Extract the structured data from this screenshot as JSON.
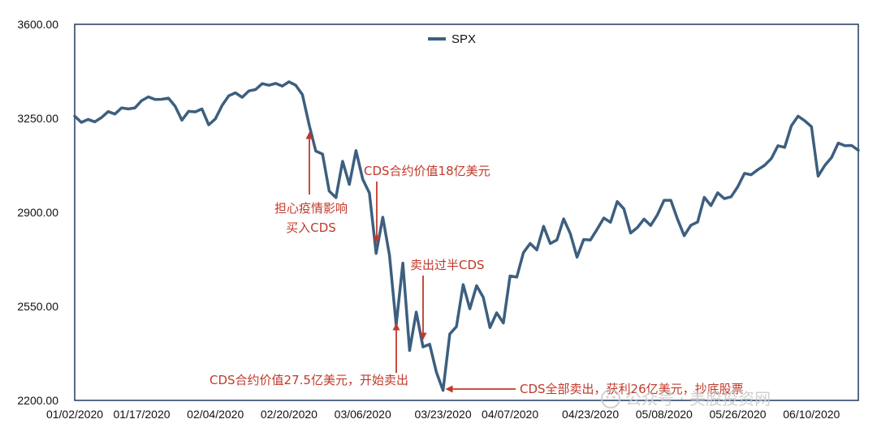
{
  "chart_data": {
    "type": "line",
    "series": [
      {
        "name": "SPX",
        "color": "#3d5f7f"
      }
    ],
    "ylim": [
      2200,
      3600
    ],
    "yticks": [
      "3600.00",
      "3250.00",
      "2900.00",
      "2550.00",
      "2200.00"
    ],
    "yticks_values": [
      3600,
      3250,
      2900,
      2550,
      2200
    ],
    "xtick_labels": [
      "01/02/2020",
      "01/17/2020",
      "02/04/2020",
      "02/20/2020",
      "03/06/2020",
      "03/23/2020",
      "04/07/2020",
      "04/23/2020",
      "05/08/2020",
      "05/26/2020",
      "06/10/2020"
    ],
    "xtick_indices": [
      0,
      10,
      21,
      32,
      43,
      55,
      65,
      77,
      88,
      99,
      110
    ],
    "values": [
      3258,
      3235,
      3246,
      3237,
      3253,
      3275,
      3266,
      3289,
      3285,
      3289,
      3316,
      3330,
      3320,
      3321,
      3325,
      3295,
      3243,
      3276,
      3274,
      3285,
      3226,
      3248,
      3298,
      3334,
      3345,
      3328,
      3352,
      3357,
      3379,
      3373,
      3380,
      3370,
      3386,
      3373,
      3338,
      3226,
      3128,
      3117,
      2979,
      2955,
      3090,
      3004,
      3130,
      3023,
      2972,
      2747,
      2882,
      2741,
      2481,
      2711,
      2386,
      2529,
      2399,
      2409,
      2305,
      2237,
      2447,
      2475,
      2631,
      2541,
      2627,
      2584,
      2471,
      2526,
      2488,
      2663,
      2659,
      2750,
      2784,
      2760,
      2848,
      2784,
      2797,
      2876,
      2821,
      2733,
      2799,
      2797,
      2837,
      2879,
      2863,
      2940,
      2913,
      2823,
      2843,
      2875,
      2851,
      2891,
      2945,
      2945,
      2875,
      2813,
      2852,
      2864,
      2956,
      2925,
      2973,
      2951,
      2958,
      2995,
      3045,
      3040,
      3059,
      3075,
      3100,
      3148,
      3142,
      3222,
      3258,
      3241,
      3219,
      3035,
      3075,
      3104,
      3158,
      3148,
      3149,
      3131
    ]
  },
  "legend": {
    "label": "SPX"
  },
  "annotations": {
    "buy_line1": "担心疫情影响",
    "buy_line2": "买入CDS",
    "cds18": "CDS合约价值18亿美元",
    "sell_half": "卖出过半CDS",
    "cds275": "CDS合约价值27.5亿美元，开始卖出",
    "all_sold": "CDS全部卖出，获利26亿美元，抄底股票"
  },
  "watermark": "公众号 · 美股投资网",
  "colors": {
    "line": "#3d5f7f",
    "annotation": "#c0392b",
    "axis": "#1e3a5f"
  }
}
